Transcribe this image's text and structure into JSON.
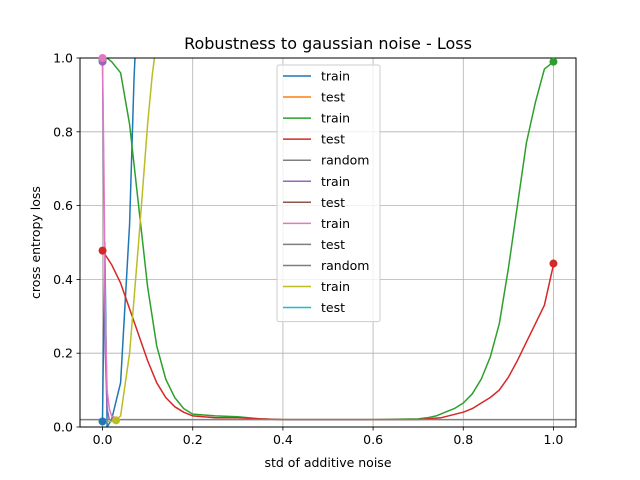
{
  "chart_data": {
    "type": "line",
    "title": "Robustness to gaussian noise - Loss",
    "xlabel": "std of additive noise",
    "ylabel": "cross entropy loss",
    "xlim": [
      -0.05,
      1.05
    ],
    "ylim": [
      0,
      1.0
    ],
    "xticks": [
      0.0,
      0.2,
      0.4,
      0.6,
      0.8,
      1.0
    ],
    "xtick_labels": [
      "0.0",
      "0.2",
      "0.4",
      "0.6",
      "0.8",
      "1.0"
    ],
    "yticks": [
      0.0,
      0.2,
      0.4,
      0.6,
      0.8,
      1.0
    ],
    "ytick_labels": [
      "0.0",
      "0.2",
      "0.4",
      "0.6",
      "0.8",
      "1.0"
    ],
    "grid": true,
    "legend_position": "upper center",
    "series": [
      {
        "name": "train",
        "color": "#1f77b4",
        "x": [
          0.0,
          0.005,
          0.01,
          0.02,
          0.04,
          0.06,
          0.07,
          0.08
        ],
        "y": [
          0.02,
          0.5,
          0.0,
          0.02,
          0.12,
          0.55,
          0.95,
          1.2
        ],
        "marker": {
          "x": 0.0,
          "y": 0.015
        }
      },
      {
        "name": "test",
        "color": "#ff7f0e",
        "x": [],
        "y": []
      },
      {
        "name": "train",
        "color": "#2ca02c",
        "x": [
          0.0,
          0.01,
          0.02,
          0.04,
          0.06,
          0.08,
          0.1,
          0.12,
          0.14,
          0.16,
          0.18,
          0.2,
          0.25,
          0.3,
          0.35,
          0.4,
          0.45,
          0.5,
          0.55,
          0.6,
          0.65,
          0.7,
          0.72,
          0.74,
          0.76,
          0.78,
          0.8,
          0.82,
          0.84,
          0.86,
          0.88,
          0.9,
          0.92,
          0.94,
          0.96,
          0.98,
          1.0
        ],
        "y": [
          0.99,
          1.0,
          0.99,
          0.96,
          0.82,
          0.6,
          0.38,
          0.22,
          0.13,
          0.08,
          0.05,
          0.035,
          0.03,
          0.028,
          0.022,
          0.02,
          0.02,
          0.02,
          0.02,
          0.02,
          0.021,
          0.022,
          0.025,
          0.03,
          0.04,
          0.05,
          0.065,
          0.09,
          0.13,
          0.19,
          0.28,
          0.43,
          0.6,
          0.77,
          0.88,
          0.97,
          0.99
        ],
        "marker": {
          "x": 0.0,
          "y": 0.995
        },
        "marker_end": {
          "x": 1.0,
          "y": 0.99
        }
      },
      {
        "name": "test",
        "color": "#d62728",
        "x": [
          0.0,
          0.02,
          0.04,
          0.06,
          0.08,
          0.1,
          0.12,
          0.14,
          0.16,
          0.18,
          0.2,
          0.25,
          0.3,
          0.35,
          0.4,
          0.45,
          0.5,
          0.55,
          0.6,
          0.65,
          0.7,
          0.75,
          0.8,
          0.82,
          0.84,
          0.86,
          0.88,
          0.9,
          0.92,
          0.94,
          0.96,
          0.98,
          1.0
        ],
        "y": [
          0.478,
          0.44,
          0.39,
          0.32,
          0.25,
          0.18,
          0.12,
          0.08,
          0.055,
          0.04,
          0.03,
          0.025,
          0.025,
          0.022,
          0.02,
          0.02,
          0.02,
          0.02,
          0.02,
          0.02,
          0.02,
          0.025,
          0.04,
          0.05,
          0.065,
          0.08,
          0.1,
          0.135,
          0.18,
          0.23,
          0.28,
          0.33,
          0.44
        ],
        "marker": {
          "x": 0.0,
          "y": 0.478
        },
        "marker_end": {
          "x": 1.0,
          "y": 0.443
        }
      },
      {
        "name": "random",
        "color": "#7f7f7f",
        "x": [
          -0.05,
          1.05
        ],
        "y": [
          0.02,
          0.02
        ]
      },
      {
        "name": "train",
        "color": "#9467bd",
        "x": [
          0.0,
          0.003,
          0.006,
          0.01,
          0.015
        ],
        "y": [
          0.99,
          0.6,
          0.2,
          0.05,
          0.02
        ],
        "marker": {
          "x": 0.0,
          "y": 0.99
        }
      },
      {
        "name": "test",
        "color": "#8c564b",
        "x": [],
        "y": []
      },
      {
        "name": "train",
        "color": "#e377c2",
        "x": [
          0.0,
          0.003,
          0.006,
          0.01,
          0.015,
          0.02,
          0.03
        ],
        "y": [
          1.0,
          0.7,
          0.3,
          0.1,
          0.05,
          0.03,
          0.025
        ],
        "marker": {
          "x": 0.0,
          "y": 1.0
        }
      },
      {
        "name": "test",
        "color": "#7f7f7f",
        "x": [],
        "y": []
      },
      {
        "name": "random",
        "color": "#7f7f7f",
        "x": [],
        "y": []
      },
      {
        "name": "train",
        "color": "#bcbd22",
        "x": [
          0.0,
          0.01,
          0.02,
          0.03,
          0.04,
          0.06,
          0.08,
          0.1,
          0.11,
          0.115
        ],
        "y": [
          0.02,
          0.015,
          0.015,
          0.02,
          0.03,
          0.2,
          0.5,
          0.82,
          0.95,
          1.0
        ],
        "marker": {
          "x": 0.03,
          "y": 0.018
        }
      },
      {
        "name": "test",
        "color": "#17becf",
        "x": [],
        "y": []
      }
    ]
  }
}
